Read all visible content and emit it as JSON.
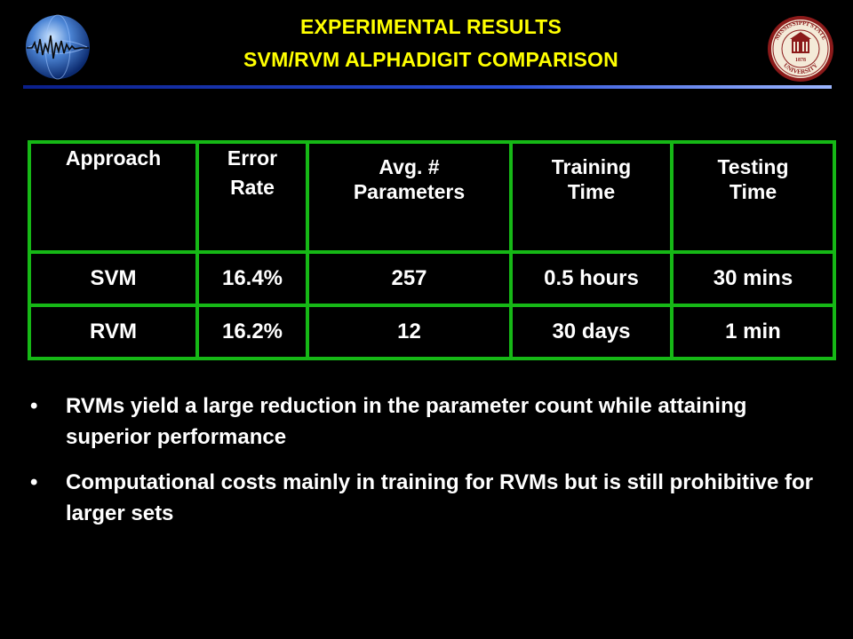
{
  "header": {
    "title_line1": "EXPERIMENTAL RESULTS",
    "title_line2": "SVM/RVM ALPHADIGIT COMPARISON",
    "accent_color": "#ffff00",
    "rule_colors": [
      "#0a1f8a",
      "#9cb6ff"
    ]
  },
  "logos": {
    "left": {
      "icon": "globe-waveform-icon"
    },
    "right": {
      "icon": "university-seal-icon",
      "text": "MISSISSIPPI STATE UNIVERSITY",
      "year": "1878",
      "color": "#8b1a1a"
    }
  },
  "table": {
    "border_color": "#16b816",
    "columns": [
      "Approach",
      "Error Rate",
      "Avg. # Parameters",
      "Training Time",
      "Testing Time"
    ],
    "rows": [
      [
        "SVM",
        "16.4%",
        "257",
        "0.5 hours",
        "30 mins"
      ],
      [
        "RVM",
        "16.2%",
        "12",
        "30 days",
        "1 min"
      ]
    ]
  },
  "bullets": [
    "RVMs yield a large reduction in the parameter count while attaining superior performance",
    "Computational costs mainly in training for RVMs but is still prohibitive for larger sets"
  ]
}
